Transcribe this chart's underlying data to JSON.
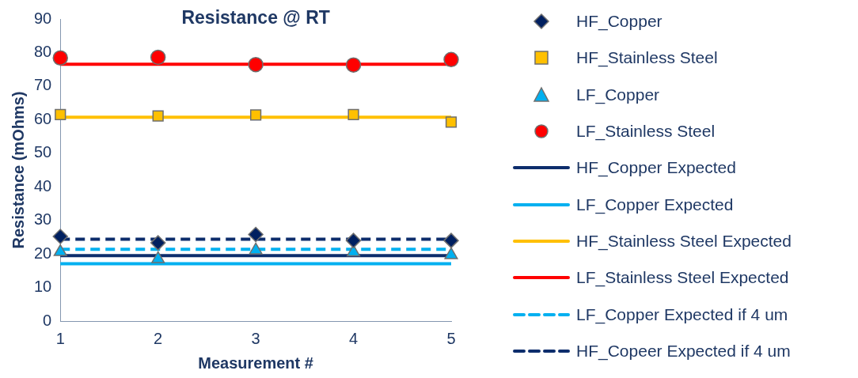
{
  "chart_data": {
    "type": "line",
    "title": "Resistance @ RT",
    "xlabel": "Measurement #",
    "ylabel": "Resistance (mOhms)",
    "x": [
      1,
      2,
      3,
      4,
      5
    ],
    "xlim": [
      1,
      5
    ],
    "xticks": [
      1,
      2,
      3,
      4,
      5
    ],
    "ylim": [
      0,
      90
    ],
    "yticks": [
      0,
      10,
      20,
      30,
      40,
      50,
      60,
      70,
      80,
      90
    ],
    "grid": false,
    "legend": "right",
    "series": [
      {
        "name": "HF_Copper",
        "type": "scatter",
        "marker": "diamond",
        "color": "#002060",
        "values": [
          25.2,
          23.3,
          25.8,
          24.0,
          24.0
        ]
      },
      {
        "name": "HF_Stainless Steel",
        "type": "scatter",
        "marker": "square",
        "color": "#ffc000",
        "values": [
          61.5,
          61.1,
          61.4,
          61.5,
          59.3
        ]
      },
      {
        "name": "LF_Copper",
        "type": "scatter",
        "marker": "triangle",
        "color": "#00b0f0",
        "values": [
          20.6,
          18.5,
          21.1,
          20.5,
          19.7
        ]
      },
      {
        "name": "LF_Stainless Steel",
        "type": "scatter",
        "marker": "circle",
        "color": "#ff0000",
        "values": [
          78.4,
          78.6,
          76.4,
          76.3,
          77.9
        ]
      },
      {
        "name": "HF_Copper Expected",
        "line_style": "solid",
        "color": "#0d2d6c",
        "values": [
          19.5,
          19.5,
          19.5,
          19.5,
          19.5
        ]
      },
      {
        "name": "LF_Copper Expected",
        "line_style": "solid",
        "color": "#00b0f0",
        "values": [
          17.1,
          17.1,
          17.1,
          17.1,
          17.1
        ]
      },
      {
        "name": "HF_Stainless Steel Expected",
        "line_style": "solid",
        "color": "#ffc000",
        "values": [
          60.7,
          60.7,
          60.7,
          60.7,
          60.7
        ]
      },
      {
        "name": "LF_Stainless Steel Expected",
        "line_style": "solid",
        "color": "#ff0000",
        "values": [
          76.5,
          76.5,
          76.5,
          76.5,
          76.5
        ]
      },
      {
        "name": "LF_Copper Expected if 4 um",
        "line_style": "dashed",
        "color": "#00b0f0",
        "values": [
          21.4,
          21.4,
          21.4,
          21.4,
          21.4
        ]
      },
      {
        "name": "HF_Copeer Expected if 4 um",
        "line_style": "dashed",
        "color": "#0d2d6c",
        "values": [
          24.4,
          24.4,
          24.4,
          24.4,
          24.4
        ]
      }
    ]
  }
}
